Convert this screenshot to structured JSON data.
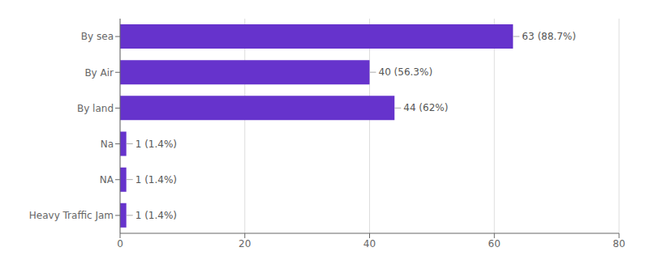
{
  "chart_data": {
    "type": "bar",
    "orientation": "horizontal",
    "categories": [
      "By sea",
      "By Air",
      "By land",
      "Na",
      "NA",
      "Heavy Traffic Jam"
    ],
    "values": [
      63,
      40,
      44,
      1,
      1,
      1
    ],
    "value_labels": [
      "63 (88.7%)",
      "40 (56.3%)",
      "44 (62%)",
      "1 (1.4%)",
      "1 (1.4%)",
      "1 (1.4%)"
    ],
    "data_labels": true,
    "color": "#6633CC",
    "xlim": [
      0,
      80
    ],
    "xticks": [
      0,
      20,
      40,
      60,
      80
    ],
    "grid": true
  }
}
